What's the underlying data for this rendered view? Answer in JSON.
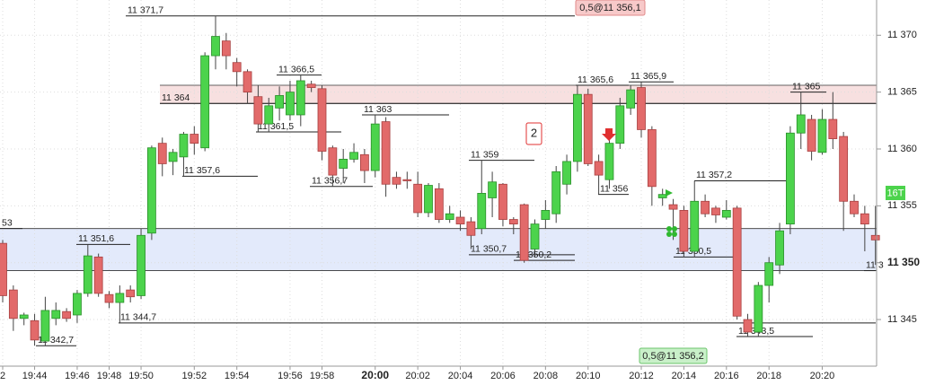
{
  "chart_data": {
    "type": "candlestick",
    "categories": [
      "2",
      null,
      null,
      "19:44",
      null,
      null,
      null,
      "19:46",
      null,
      null,
      "19:48",
      null,
      null,
      "19:50",
      null,
      null,
      null,
      null,
      "19:52",
      null,
      null,
      null,
      "19:54",
      null,
      null,
      null,
      null,
      "19:56",
      null,
      null,
      "19:58",
      null,
      null,
      null,
      null,
      "20:00",
      null,
      null,
      null,
      "20:02",
      null,
      null,
      null,
      "20:04",
      null,
      null,
      null,
      "20:06",
      null,
      null,
      null,
      "20:08",
      null,
      null,
      null,
      "20:10",
      null,
      null,
      null,
      null,
      "20:12",
      null,
      null,
      null,
      "20:14",
      null,
      null,
      null,
      "20:16",
      null,
      null,
      null,
      "20:18",
      null,
      null,
      null,
      null,
      "20:20",
      null,
      null,
      null,
      null,
      null
    ],
    "open": [
      11351.7,
      11347.6,
      11345.1,
      11344.9,
      11343.1,
      11345.1,
      11345.7,
      11345.4,
      11347.3,
      11350.5,
      11347.2,
      11346.5,
      11347.6,
      11347.1,
      11352.6,
      11360.5,
      11358.9,
      11359.3,
      11361.3,
      11360.1,
      11368.2,
      11369.5,
      11367.6,
      11366.8,
      11364.6,
      11362.2,
      11363.6,
      11363,
      11363,
      11365.7,
      11365.3,
      11360.1,
      11358.3,
      11359.1,
      11359.5,
      11358.1,
      11362.4,
      11357.5,
      11357.3,
      11356.9,
      11354.4,
      11356.5,
      11353.8,
      11354,
      11353.6,
      11353,
      11355.7,
      11356.9,
      11353.8,
      11355.1,
      11351.2,
      11353.8,
      11354.3,
      11356.9,
      11358.9,
      11364.8,
      11358.9,
      11357.3,
      11360.5,
      11363.6,
      11365.4,
      11361.7,
      11355.7,
      11355.1,
      11354.6,
      11351,
      11355.4,
      11354.8,
      11354,
      11354.8,
      11345,
      11343.9,
      11348,
      11349.8,
      11353.4,
      11361.4,
      11362.6,
      11359.7,
      11362.6,
      11361.1,
      11355.4,
      11354.3,
      11352.4
    ],
    "high": [
      11352,
      11348,
      11345.6,
      11345.5,
      11347,
      11346.5,
      11346,
      11347.6,
      11351.6,
      11350.8,
      11347.5,
      11348,
      11348,
      11353,
      11360.3,
      11361,
      11360,
      11361.5,
      11362,
      11368.5,
      11371.7,
      11370.2,
      11368,
      11367,
      11365.6,
      11364.5,
      11365.5,
      11366,
      11366.5,
      11366,
      11365.6,
      11360.3,
      11360,
      11360.5,
      11360,
      11363,
      11362.8,
      11358,
      11358,
      11358,
      11357,
      11357,
      11355,
      11354.6,
      11354,
      11359,
      11358,
      11357,
      11354,
      11355.2,
      11353.8,
      11355.5,
      11358.5,
      11359.5,
      11365.6,
      11365.3,
      11359.5,
      11361,
      11364.5,
      11365.6,
      11365.9,
      11362,
      11356.5,
      11355.6,
      11355,
      11357.2,
      11356,
      11355,
      11355.5,
      11355,
      11345.5,
      11348.3,
      11350.5,
      11353.5,
      11362,
      11365,
      11363,
      11363.5,
      11365,
      11361.5,
      11356,
      11355,
      11355
    ],
    "low": [
      11346.5,
      11344,
      11344.5,
      11342.7,
      11342.7,
      11344.5,
      11344.8,
      11344.7,
      11347,
      11347,
      11346,
      11344.7,
      11346.5,
      11346.8,
      11352,
      11357.6,
      11357.7,
      11357.6,
      11359.5,
      11359.8,
      11367,
      11367,
      11365.5,
      11364,
      11361.5,
      11361.5,
      11362.5,
      11362.5,
      11362,
      11365,
      11359,
      11356.7,
      11357,
      11358.8,
      11357,
      11357.5,
      11355.8,
      11356.5,
      11356.5,
      11354,
      11354,
      11353.5,
      11353.5,
      11352.8,
      11351.2,
      11352.5,
      11354,
      11353.2,
      11352.5,
      11350,
      11350.5,
      11353,
      11353.5,
      11356,
      11358,
      11358.5,
      11356,
      11356.5,
      11360,
      11363,
      11361,
      11355,
      11355,
      11352,
      11350.5,
      11350.5,
      11354,
      11353.5,
      11353.8,
      11345,
      11343.5,
      11343.5,
      11346.5,
      11349,
      11352.5,
      11360,
      11359,
      11359.5,
      11360,
      11352.8,
      11354,
      11351,
      11349.8
    ],
    "close": [
      11347.1,
      11345.1,
      11345.4,
      11343.2,
      11345.8,
      11345.8,
      11345.1,
      11347.3,
      11350.6,
      11347.3,
      11346.5,
      11347.3,
      11347,
      11352.4,
      11360.1,
      11358.7,
      11359.7,
      11361.3,
      11360.5,
      11368.2,
      11369.9,
      11368.2,
      11366.8,
      11365,
      11362.2,
      11363.8,
      11364.7,
      11365,
      11366,
      11365.4,
      11359.8,
      11357.7,
      11359.1,
      11359.7,
      11358.1,
      11362.2,
      11356.9,
      11356.9,
      11357.2,
      11354.4,
      11356.8,
      11353.8,
      11354.3,
      11353.4,
      11352.4,
      11356.1,
      11357.1,
      11353.8,
      11353.4,
      11350.2,
      11353.4,
      11354.6,
      11358,
      11358.9,
      11364.8,
      11358.7,
      11357.7,
      11360.5,
      11363.8,
      11365.2,
      11361.7,
      11356.7,
      11356,
      11354.7,
      11351,
      11355.4,
      11354.3,
      11354.2,
      11354.6,
      11345.3,
      11343.9,
      11348,
      11350,
      11352.8,
      11361.4,
      11363,
      11359.8,
      11362.6,
      11360.9,
      11355.4,
      11354.3,
      11353.4,
      11352
    ],
    "up_color": "#4cd34c",
    "down_color": "#e26a6a",
    "ylim": [
      11340.9,
      11373.1
    ],
    "yticks": [
      {
        "value": 11345,
        "label": "11 345"
      },
      {
        "value": 11350,
        "label": "11 350"
      },
      {
        "value": 11355,
        "label": "11 355"
      },
      {
        "value": 11360,
        "label": "11 360"
      },
      {
        "value": 11365,
        "label": "11 365"
      },
      {
        "value": 11370,
        "label": "11 370"
      }
    ],
    "grid": true,
    "zones": [
      {
        "low": 11349.3,
        "high": 11353,
        "color": "#e3eafb"
      },
      {
        "low": 11364,
        "high": 11365.6,
        "color": "#f7e0e0"
      }
    ],
    "levels": [
      {
        "label": "11 371,7",
        "value": 11371.7
      },
      {
        "label": "11 366,5",
        "value": 11366.5
      },
      {
        "label": "11 364",
        "value": 11364
      },
      {
        "label": "11 361,5",
        "value": 11361.5
      },
      {
        "label": "11 363",
        "value": 11363
      },
      {
        "label": "11 357,6",
        "value": 11357.6
      },
      {
        "label": "11 356,7",
        "value": 11356.7
      },
      {
        "label": "11 359",
        "value": 11359
      },
      {
        "label": "11 351,6",
        "value": 11351.6
      },
      {
        "label": "11 350,7",
        "value": 11350.7
      },
      {
        "label": "11 350,2",
        "value": 11350.2
      },
      {
        "label": "11 344,7",
        "value": 11344.7
      },
      {
        "label": "11 342,7",
        "value": 11342.7
      },
      {
        "label": "11 365,6",
        "value": 11365.6
      },
      {
        "label": "11 365,9",
        "value": 11365.9
      },
      {
        "label": "11 356",
        "value": 11356
      },
      {
        "label": "11 357,2",
        "value": 11357.2
      },
      {
        "label": "11 350,5",
        "value": 11350.5
      },
      {
        "label": "11 343,5",
        "value": 11343.5
      },
      {
        "label": "11 365",
        "value": 11365
      },
      {
        "label": "53",
        "value": 11353
      },
      {
        "label": "11 3",
        "value": 11349.3
      }
    ],
    "top_marker": "0,5@11 356,1",
    "bottom_marker": "0,5@11 356,2",
    "signal": "2",
    "timeframe": "16T"
  }
}
